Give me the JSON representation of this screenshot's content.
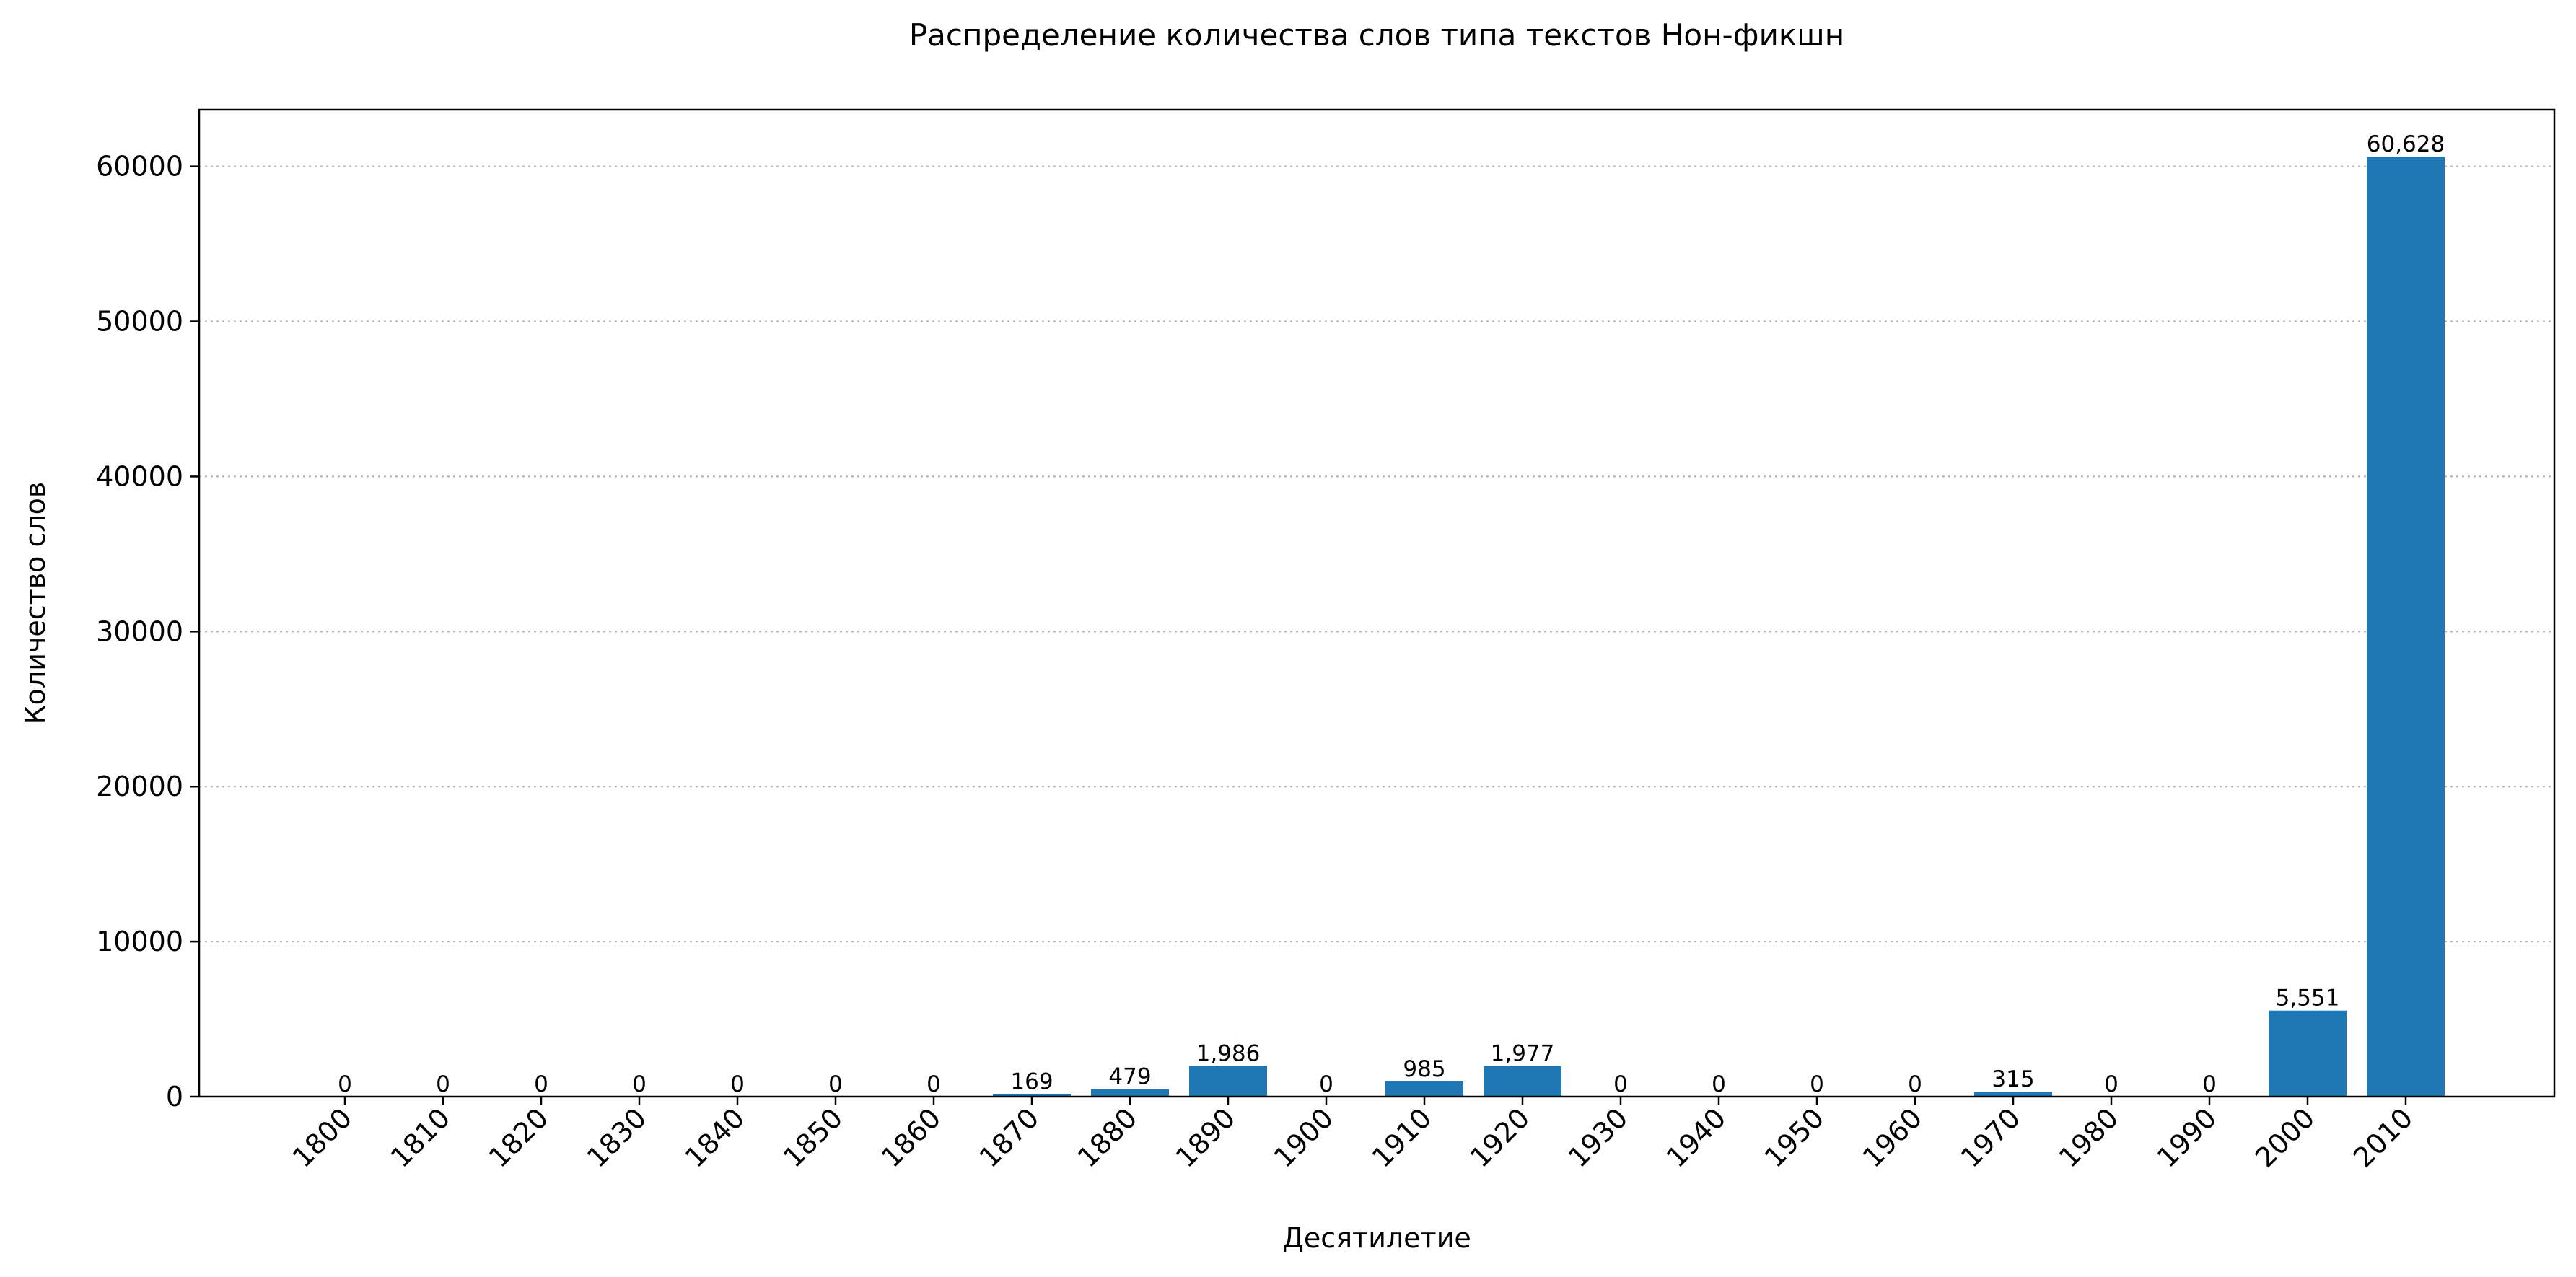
{
  "chart_data": {
    "type": "bar",
    "title": "Распределение количества слов типа текстов Нон-фикшн",
    "xlabel": "Десятилетие",
    "ylabel": "Количество слов",
    "categories": [
      "1800",
      "1810",
      "1820",
      "1830",
      "1840",
      "1850",
      "1860",
      "1870",
      "1880",
      "1890",
      "1900",
      "1910",
      "1920",
      "1930",
      "1940",
      "1950",
      "1960",
      "1970",
      "1980",
      "1990",
      "2000",
      "2010"
    ],
    "values": [
      0,
      0,
      0,
      0,
      0,
      0,
      0,
      169,
      479,
      1986,
      0,
      985,
      1977,
      0,
      0,
      0,
      0,
      315,
      0,
      0,
      5551,
      60628
    ],
    "data_labels": [
      "0",
      "0",
      "0",
      "0",
      "0",
      "0",
      "0",
      "169",
      "479",
      "1,986",
      "0",
      "985",
      "1,977",
      "0",
      "0",
      "0",
      "0",
      "315",
      "0",
      "0",
      "5,551",
      "60,628"
    ],
    "ylim": [
      0,
      63660
    ],
    "yticks": [
      0,
      10000,
      20000,
      30000,
      40000,
      50000,
      60000
    ],
    "ytick_labels": [
      "0",
      "10000",
      "20000",
      "30000",
      "40000",
      "50000",
      "60000"
    ],
    "grid": "horizontal dotted",
    "bar_color": "#1f77b4"
  }
}
